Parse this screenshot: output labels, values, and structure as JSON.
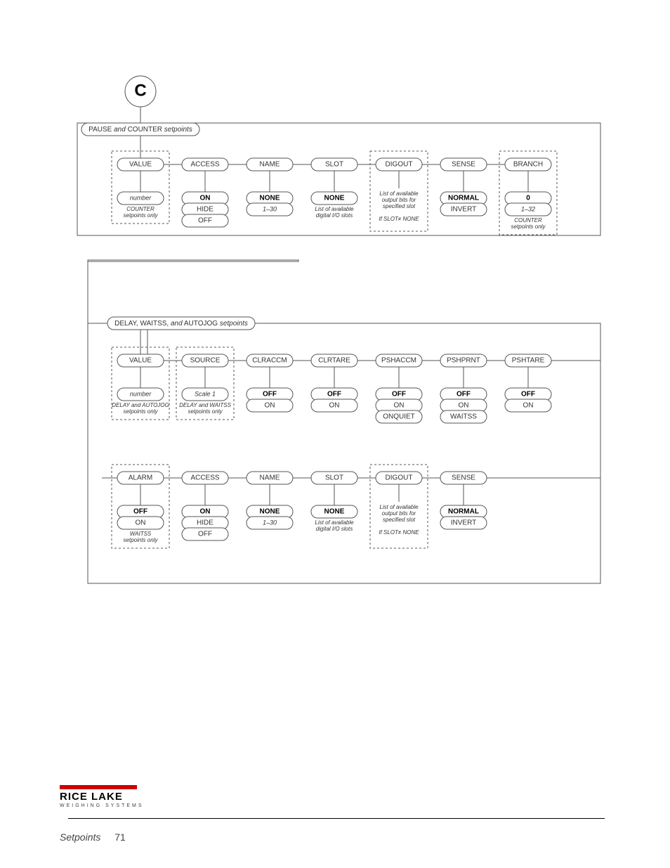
{
  "circle_label": "C",
  "section1": {
    "label_pre": "PAUSE ",
    "label_mid": "and",
    "label_post": " COUNTER ",
    "label_tail": "setpoints",
    "cols": [
      {
        "head": "VALUE",
        "dashed": true,
        "opts": [
          {
            "t": "number",
            "i": true
          }
        ],
        "foot": "COUNTER setpoints only"
      },
      {
        "head": "ACCESS",
        "dashed": false,
        "opts": [
          {
            "t": "ON",
            "b": true
          },
          {
            "t": "HIDE"
          },
          {
            "t": "OFF"
          }
        ]
      },
      {
        "head": "NAME",
        "dashed": false,
        "opts": [
          {
            "t": "NONE",
            "b": true
          },
          {
            "t": "1–30",
            "i": true
          }
        ]
      },
      {
        "head": "SLOT",
        "dashed": false,
        "opts": [
          {
            "t": "NONE",
            "b": true
          }
        ],
        "foot": "List of available digital I/O slots",
        "footI": true
      },
      {
        "head": "DIGOUT",
        "dashed": true,
        "foot": "List of available output bits for specified slot\\nIf SLOT≠ NONE",
        "optsNone": true
      },
      {
        "head": "SENSE",
        "dashed": false,
        "opts": [
          {
            "t": "NORMAL",
            "b": true
          },
          {
            "t": "INVERT"
          }
        ]
      },
      {
        "head": "BRANCH",
        "dashed": true,
        "opts": [
          {
            "t": "0",
            "b": true
          },
          {
            "t": "1–32",
            "i": true
          }
        ],
        "foot": "COUNTER setpoints only"
      }
    ]
  },
  "section2": {
    "label_pre": "DELAY, WAITSS, ",
    "label_mid": "and",
    "label_post": " AUTOJOG ",
    "label_tail": "setpoints",
    "row1": [
      {
        "head": "VALUE",
        "dashed": true,
        "opts": [
          {
            "t": "number",
            "i": true
          }
        ],
        "foot": "DELAY and AUTOJOG setpoints only"
      },
      {
        "head": "SOURCE",
        "dashed": true,
        "opts": [
          {
            "t": "Scale 1",
            "i": true
          }
        ],
        "foot": "DELAY and WAITSS setpoints only"
      },
      {
        "head": "CLRACCM",
        "dashed": false,
        "opts": [
          {
            "t": "OFF",
            "b": true
          },
          {
            "t": "ON"
          }
        ]
      },
      {
        "head": "CLRTARE",
        "dashed": false,
        "opts": [
          {
            "t": "OFF",
            "b": true
          },
          {
            "t": "ON"
          }
        ]
      },
      {
        "head": "PSHACCM",
        "dashed": false,
        "opts": [
          {
            "t": "OFF",
            "b": true
          },
          {
            "t": "ON"
          },
          {
            "t": "ONQUIET"
          }
        ]
      },
      {
        "head": "PSHPRNT",
        "dashed": false,
        "opts": [
          {
            "t": "OFF",
            "b": true
          },
          {
            "t": "ON"
          },
          {
            "t": "WAITSS"
          }
        ]
      },
      {
        "head": "PSHTARE",
        "dashed": false,
        "opts": [
          {
            "t": "OFF",
            "b": true
          },
          {
            "t": "ON"
          }
        ]
      }
    ],
    "row2": [
      {
        "head": "ALARM",
        "dashed": true,
        "opts": [
          {
            "t": "OFF",
            "b": true
          },
          {
            "t": "ON"
          }
        ],
        "foot": "WAITSS setpoints only"
      },
      {
        "head": "ACCESS",
        "dashed": false,
        "opts": [
          {
            "t": "ON",
            "b": true
          },
          {
            "t": "HIDE"
          },
          {
            "t": "OFF"
          }
        ]
      },
      {
        "head": "NAME",
        "dashed": false,
        "opts": [
          {
            "t": "NONE",
            "b": true
          },
          {
            "t": "1–30",
            "i": true
          }
        ]
      },
      {
        "head": "SLOT",
        "dashed": false,
        "opts": [
          {
            "t": "NONE",
            "b": true
          }
        ],
        "foot": "List of available digital I/O slots",
        "footI": true
      },
      {
        "head": "DIGOUT",
        "dashed": true,
        "foot": "List of available output bits for specified slot\\nIf SLOT≠ NONE",
        "optsNone": true
      },
      {
        "head": "SENSE",
        "dashed": false,
        "opts": [
          {
            "t": "NORMAL",
            "b": true
          },
          {
            "t": "INVERT"
          }
        ]
      }
    ]
  },
  "footer": {
    "brand": "RICE LAKE",
    "sub": "WEIGHING SYSTEMS",
    "section": "Setpoints",
    "page": "71"
  }
}
